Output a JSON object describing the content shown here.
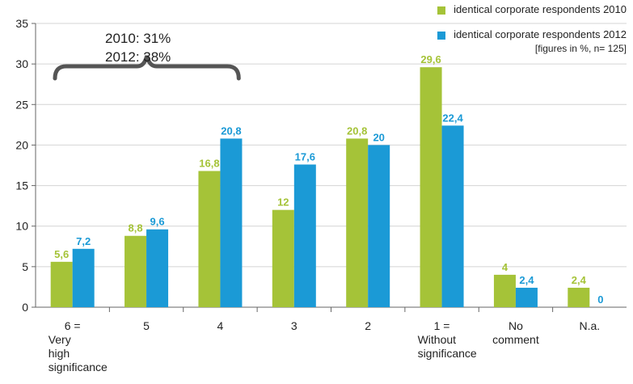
{
  "legend": {
    "items": [
      {
        "label": "identical corporate respondents 2010",
        "color": "#a5c338"
      },
      {
        "label": "identical corporate respondents 2012",
        "color": "#1b9ad6"
      }
    ],
    "note": "[figures in %, n= 125]"
  },
  "annotation": {
    "line1": "2010: 31%",
    "line2": "2012: 38%"
  },
  "chart_data": {
    "type": "bar",
    "categories": [
      [
        "6 =",
        "Very",
        "high",
        "significance"
      ],
      [
        "5"
      ],
      [
        "4"
      ],
      [
        "3"
      ],
      [
        "2"
      ],
      [
        "1 =",
        "Without",
        "significance"
      ],
      [
        "No",
        "comment"
      ],
      [
        "N.a."
      ]
    ],
    "series": [
      {
        "name": "identical corporate respondents 2010",
        "color": "#a5c338",
        "values": [
          5.6,
          8.8,
          16.8,
          12,
          20.8,
          29.6,
          4,
          2.4
        ],
        "labels": [
          "5,6",
          "8,8",
          "16,8",
          "12",
          "20,8",
          "29,6",
          "4",
          "2,4"
        ]
      },
      {
        "name": "identical corporate respondents 2012",
        "color": "#1b9ad6",
        "values": [
          7.2,
          9.6,
          20.8,
          17.6,
          20,
          22.4,
          2.4,
          0
        ],
        "labels": [
          "7,2",
          "9,6",
          "20,8",
          "17,6",
          "20",
          "22,4",
          "2,4",
          "0"
        ]
      }
    ],
    "ylim": [
      0,
      35
    ],
    "yticks": [
      0,
      5,
      10,
      15,
      20,
      25,
      30,
      35
    ],
    "grid": true,
    "legend_position": "top-right"
  }
}
